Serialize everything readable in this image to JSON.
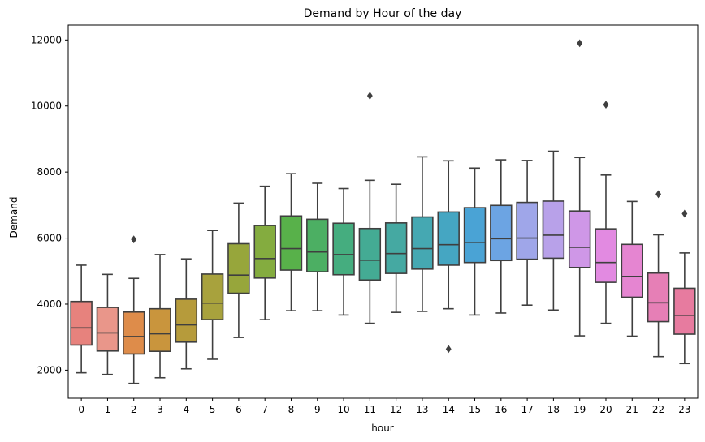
{
  "chart_data": {
    "type": "box",
    "title": "Demand by Hour of the day",
    "xlabel": "hour",
    "ylabel": "Demand",
    "ylim": [
      1150,
      12450
    ],
    "yticks": [
      2000,
      4000,
      6000,
      8000,
      10000,
      12000
    ],
    "grid": false,
    "categories": [
      "0",
      "1",
      "2",
      "3",
      "4",
      "5",
      "6",
      "7",
      "8",
      "9",
      "10",
      "11",
      "12",
      "13",
      "14",
      "15",
      "16",
      "17",
      "18",
      "19",
      "20",
      "21",
      "22",
      "23"
    ],
    "colors": [
      "#e7827d",
      "#e9968a",
      "#de8c4a",
      "#c9953d",
      "#b69b3b",
      "#a8a23d",
      "#97a63b",
      "#84ac3f",
      "#58b14a",
      "#4caf63",
      "#45ad7f",
      "#44ab94",
      "#45a9a2",
      "#45a8b2",
      "#45a6c2",
      "#4aa3d5",
      "#6ca4e3",
      "#9fa6e9",
      "#b8a1e9",
      "#cf97e7",
      "#e28ae1",
      "#e585d1",
      "#e67fb6",
      "#e77b9f"
    ],
    "boxes": [
      {
        "whislo": 1920,
        "q1": 2760,
        "med": 3280,
        "q3": 4080,
        "whishi": 5180,
        "fliers": []
      },
      {
        "whislo": 1870,
        "q1": 2580,
        "med": 3130,
        "q3": 3900,
        "whishi": 4900,
        "fliers": []
      },
      {
        "whislo": 1600,
        "q1": 2490,
        "med": 3020,
        "q3": 3760,
        "whishi": 4780,
        "fliers": [
          5960
        ]
      },
      {
        "whislo": 1770,
        "q1": 2570,
        "med": 3100,
        "q3": 3860,
        "whishi": 5500,
        "fliers": []
      },
      {
        "whislo": 2040,
        "q1": 2850,
        "med": 3370,
        "q3": 4150,
        "whishi": 5370,
        "fliers": []
      },
      {
        "whislo": 2330,
        "q1": 3530,
        "med": 4030,
        "q3": 4910,
        "whishi": 6230,
        "fliers": []
      },
      {
        "whislo": 2990,
        "q1": 4330,
        "med": 4880,
        "q3": 5830,
        "whishi": 7060,
        "fliers": []
      },
      {
        "whislo": 3530,
        "q1": 4790,
        "med": 5380,
        "q3": 6380,
        "whishi": 7570,
        "fliers": []
      },
      {
        "whislo": 3800,
        "q1": 5030,
        "med": 5680,
        "q3": 6670,
        "whishi": 7950,
        "fliers": []
      },
      {
        "whislo": 3800,
        "q1": 4980,
        "med": 5580,
        "q3": 6570,
        "whishi": 7660,
        "fliers": []
      },
      {
        "whislo": 3670,
        "q1": 4890,
        "med": 5500,
        "q3": 6450,
        "whishi": 7500,
        "fliers": []
      },
      {
        "whislo": 3420,
        "q1": 4730,
        "med": 5330,
        "q3": 6290,
        "whishi": 7750,
        "fliers": [
          10310
        ]
      },
      {
        "whislo": 3750,
        "q1": 4930,
        "med": 5530,
        "q3": 6460,
        "whishi": 7630,
        "fliers": []
      },
      {
        "whislo": 3780,
        "q1": 5060,
        "med": 5680,
        "q3": 6640,
        "whishi": 8460,
        "fliers": []
      },
      {
        "whislo": 3860,
        "q1": 5180,
        "med": 5800,
        "q3": 6790,
        "whishi": 8340,
        "fliers": [
          2640
        ]
      },
      {
        "whislo": 3670,
        "q1": 5260,
        "med": 5870,
        "q3": 6920,
        "whishi": 8120,
        "fliers": []
      },
      {
        "whislo": 3730,
        "q1": 5320,
        "med": 5980,
        "q3": 6990,
        "whishi": 8370,
        "fliers": []
      },
      {
        "whislo": 3970,
        "q1": 5360,
        "med": 6000,
        "q3": 7080,
        "whishi": 8350,
        "fliers": []
      },
      {
        "whislo": 3820,
        "q1": 5390,
        "med": 6090,
        "q3": 7120,
        "whishi": 8630,
        "fliers": []
      },
      {
        "whislo": 3040,
        "q1": 5110,
        "med": 5720,
        "q3": 6820,
        "whishi": 8440,
        "fliers": [
          11900
        ]
      },
      {
        "whislo": 3420,
        "q1": 4660,
        "med": 5260,
        "q3": 6280,
        "whishi": 7910,
        "fliers": [
          10040
        ]
      },
      {
        "whislo": 3030,
        "q1": 4210,
        "med": 4840,
        "q3": 5810,
        "whishi": 7110,
        "fliers": []
      },
      {
        "whislo": 2410,
        "q1": 3470,
        "med": 4040,
        "q3": 4940,
        "whishi": 6100,
        "fliers": [
          7330
        ]
      },
      {
        "whislo": 2200,
        "q1": 3090,
        "med": 3660,
        "q3": 4480,
        "whishi": 5550,
        "fliers": [
          6740
        ]
      }
    ]
  }
}
